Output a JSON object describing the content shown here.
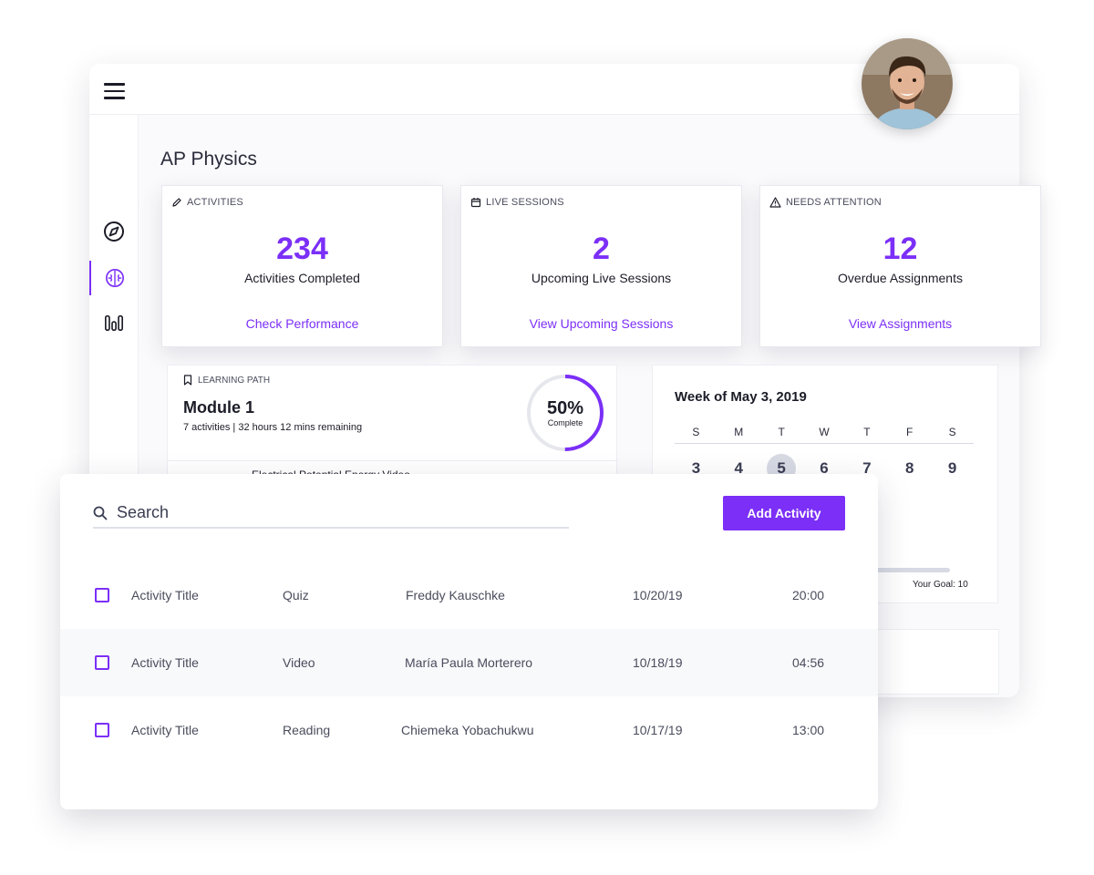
{
  "page": {
    "title": "AP Physics"
  },
  "cards": [
    {
      "header": "ACTIVITIES",
      "icon": "pencil-icon",
      "number": "234",
      "label": "Activities Completed",
      "link": "Check Performance"
    },
    {
      "header": "LIVE SESSIONS",
      "icon": "calendar-icon",
      "number": "2",
      "label": "Upcoming Live Sessions",
      "link": "View Upcoming Sessions"
    },
    {
      "header": "NEEDS ATTENTION",
      "icon": "warning-icon",
      "number": "12",
      "label": "Overdue Assignments",
      "link": "View Assignments"
    }
  ],
  "learning_path": {
    "header": "LEARNING PATH",
    "title": "Module 1",
    "subtitle": "7 activities  |  32 hours 12 mins remaining",
    "progress_value": 0.5,
    "progress_label": "50%",
    "progress_word": "Complete",
    "next_item_partial": "Electrical Potential Energy Video"
  },
  "calendar": {
    "title": "Week of May 3, 2019",
    "days": [
      "S",
      "M",
      "T",
      "W",
      "T",
      "F",
      "S"
    ],
    "dates": [
      "3",
      "4",
      "5",
      "6",
      "7",
      "8",
      "9"
    ],
    "today_index": 2,
    "goal_label": "Your Goal: 10"
  },
  "search": {
    "placeholder": "Search"
  },
  "add_button": "Add Activity",
  "activities": [
    {
      "title": "Activity Title",
      "type": "Quiz",
      "author": "Freddy Kauschke",
      "date": "10/20/19",
      "duration": "20:00"
    },
    {
      "title": "Activity Title",
      "type": "Video",
      "author": "María Paula Morterero",
      "date": "10/18/19",
      "duration": "04:56"
    },
    {
      "title": "Activity Title",
      "type": "Reading",
      "author": "Chiemeka Yobachukwu",
      "date": "10/17/19",
      "duration": "13:00"
    }
  ],
  "colors": {
    "accent": "#7b2ff7",
    "text": "#1c1c28"
  }
}
